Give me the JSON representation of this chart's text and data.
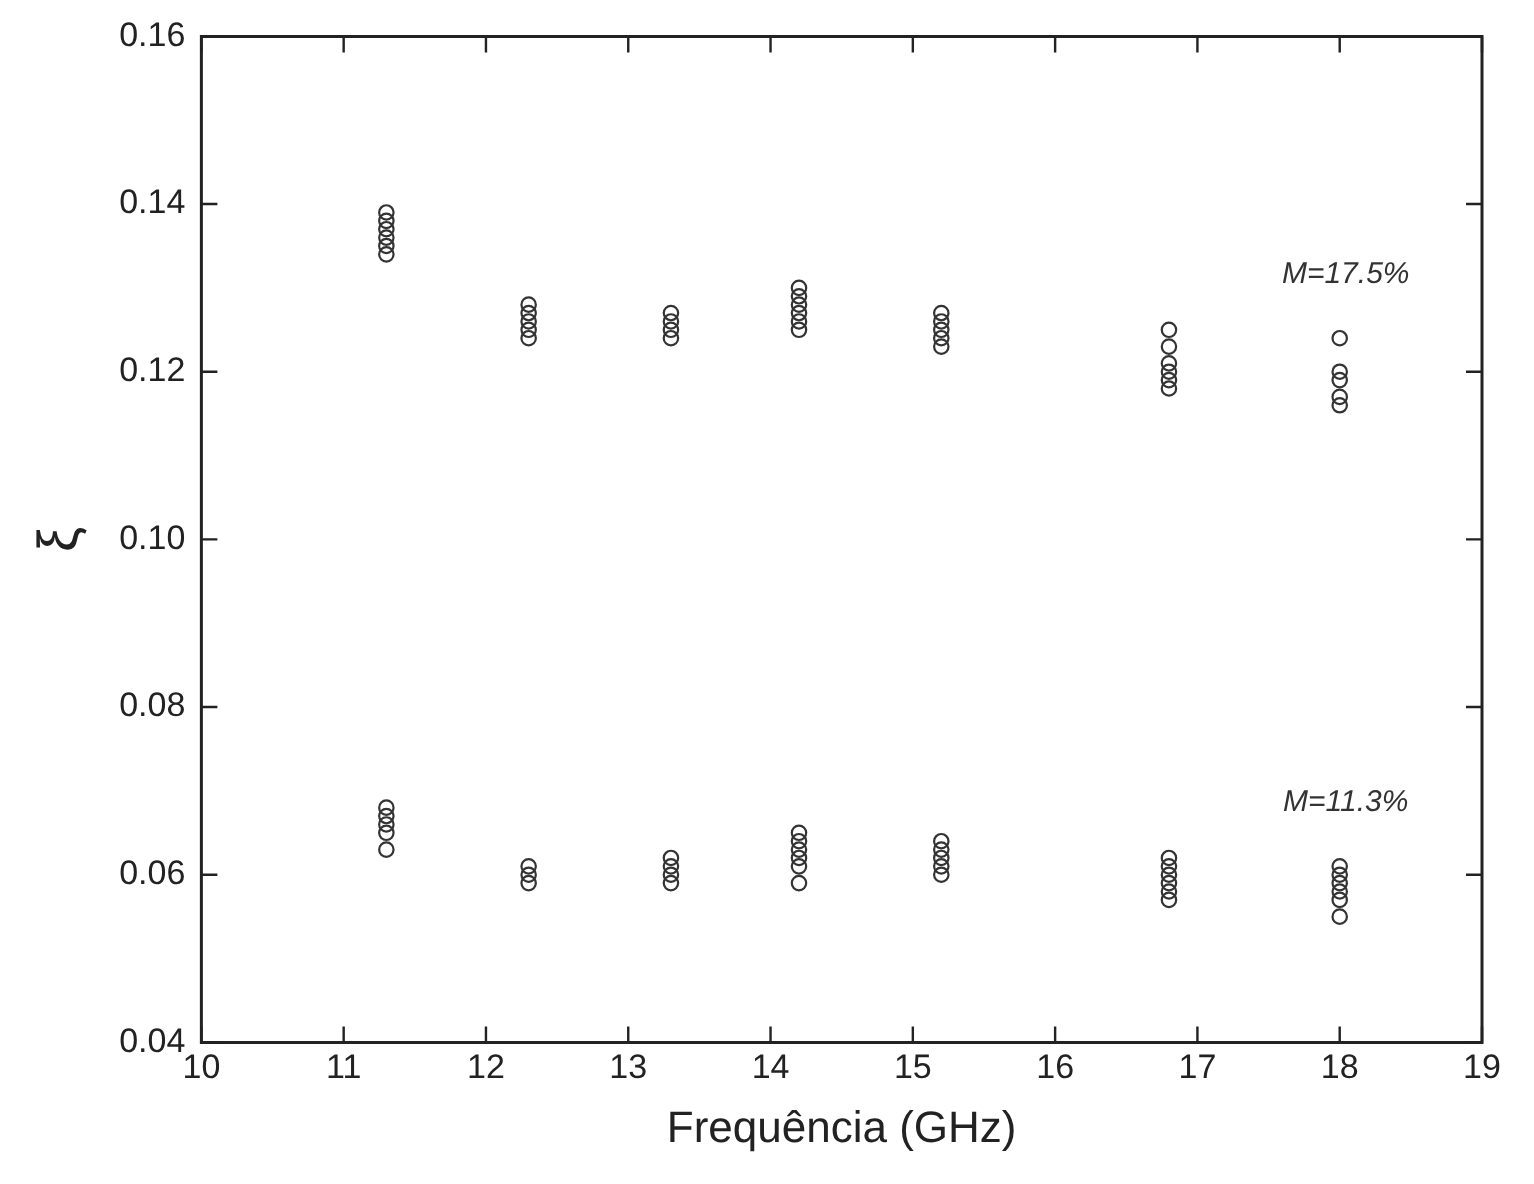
{
  "chart_data": {
    "type": "scatter",
    "xlabel": "Frequência (GHz)",
    "ylabel": "ξ",
    "xlim": [
      10,
      19
    ],
    "xticks": [
      10,
      11,
      12,
      13,
      14,
      15,
      16,
      17,
      18,
      19
    ],
    "ylim": [
      0.04,
      0.16
    ],
    "yticks": [
      0.04,
      0.06,
      0.08,
      {
        "value": 0.1,
        "label": "0.10"
      },
      0.12,
      0.14,
      0.16
    ],
    "grid": false,
    "legend": false,
    "marker": "circle",
    "series": [
      {
        "color": "#333333",
        "x": [
          11.3,
          11.3,
          11.3,
          11.3,
          11.3,
          11.3,
          12.3,
          12.3,
          12.3,
          12.3,
          12.3,
          13.3,
          13.3,
          13.3,
          13.3,
          14.2,
          14.2,
          14.2,
          14.2,
          14.2,
          14.2,
          15.2,
          15.2,
          15.2,
          15.2,
          15.2,
          16.8,
          16.8,
          16.8,
          16.8,
          16.8,
          16.8,
          18,
          18,
          18,
          18,
          18
        ],
        "values": [
          0.134,
          0.135,
          0.136,
          0.137,
          0.138,
          0.139,
          0.124,
          0.125,
          0.126,
          0.127,
          0.128,
          0.124,
          0.125,
          0.126,
          0.127,
          0.125,
          0.126,
          0.127,
          0.128,
          0.129,
          0.13,
          0.123,
          0.124,
          0.125,
          0.126,
          0.127,
          0.118,
          0.119,
          0.12,
          0.121,
          0.123,
          0.125,
          0.116,
          0.117,
          0.119,
          0.12,
          0.124
        ]
      },
      {
        "color": "#333333",
        "x": [
          11.3,
          11.3,
          11.3,
          11.3,
          11.3,
          12.3,
          12.3,
          12.3,
          13.3,
          13.3,
          13.3,
          13.3,
          14.2,
          14.2,
          14.2,
          14.2,
          14.2,
          14.2,
          15.2,
          15.2,
          15.2,
          15.2,
          15.2,
          16.8,
          16.8,
          16.8,
          16.8,
          16.8,
          16.8,
          18,
          18,
          18,
          18,
          18,
          18
        ],
        "values": [
          0.063,
          0.065,
          0.066,
          0.067,
          0.068,
          0.059,
          0.06,
          0.061,
          0.059,
          0.06,
          0.061,
          0.062,
          0.059,
          0.061,
          0.062,
          0.063,
          0.064,
          0.065,
          0.06,
          0.061,
          0.062,
          0.063,
          0.064,
          0.057,
          0.058,
          0.059,
          0.06,
          0.061,
          0.062,
          0.055,
          0.057,
          0.058,
          0.059,
          0.06,
          0.061
        ]
      }
    ],
    "annotations": [
      "M=17.5%",
      "M=11.3%"
    ]
  }
}
